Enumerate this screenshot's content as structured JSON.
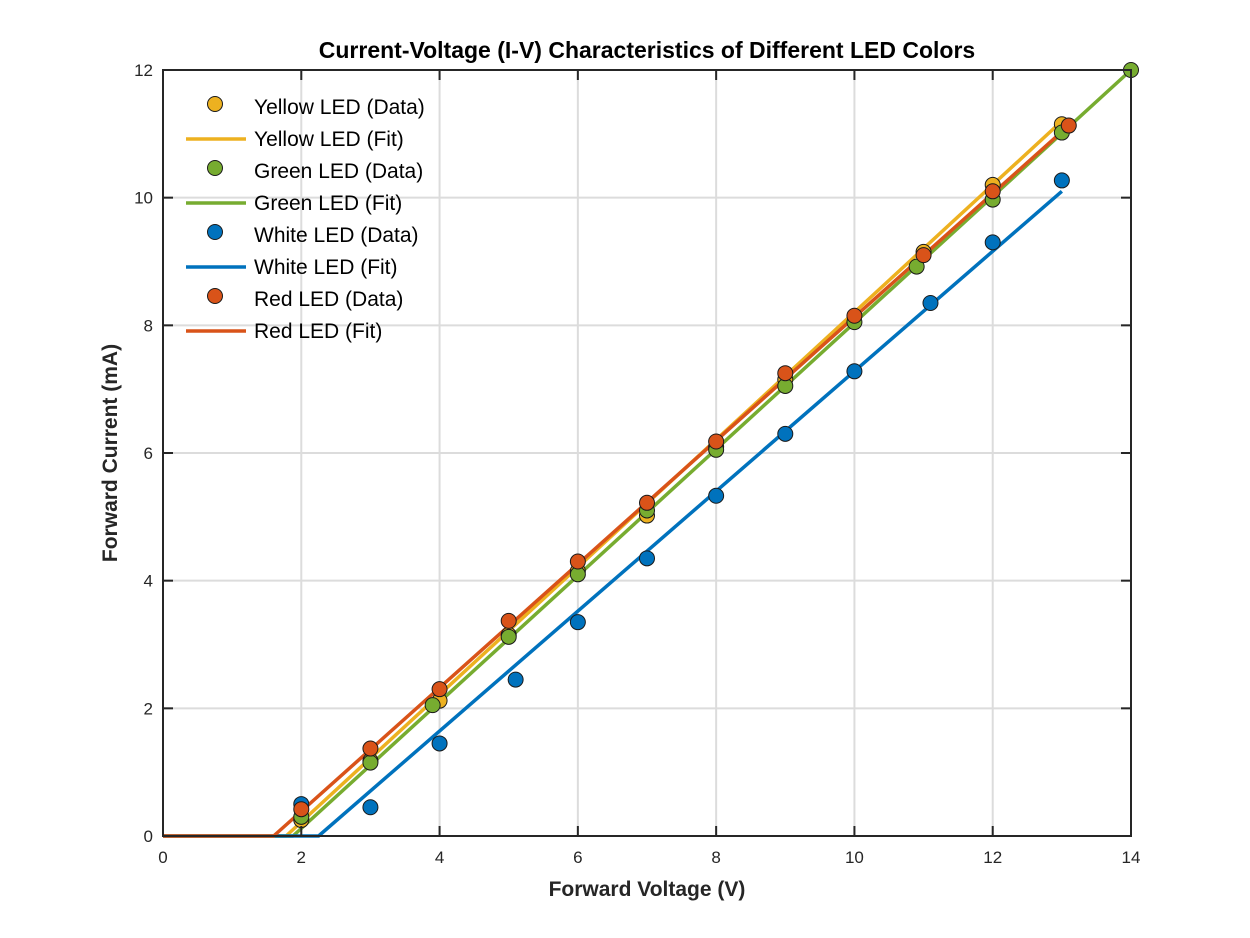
{
  "chart_data": {
    "type": "scatter",
    "title": "Current-Voltage (I-V) Characteristics of Different LED Colors",
    "xlabel": "Forward Voltage (V)",
    "ylabel": "Forward Current (mA)",
    "xlim": [
      0,
      14
    ],
    "ylim": [
      0,
      12
    ],
    "xticks": [
      0,
      2,
      4,
      6,
      8,
      10,
      12,
      14
    ],
    "yticks": [
      0,
      2,
      4,
      6,
      8,
      10,
      12
    ],
    "grid": true,
    "legend_position": "top-left",
    "series": [
      {
        "name": "Yellow LED (Data)",
        "kind": "points",
        "color": "#EDB120",
        "x": [
          2,
          3,
          4,
          5,
          6,
          7,
          8,
          9,
          11,
          12,
          13
        ],
        "y": [
          0.25,
          1.18,
          2.12,
          3.15,
          4.15,
          5.02,
          6.1,
          7.15,
          9.15,
          10.2,
          11.15
        ]
      },
      {
        "name": "Yellow LED (Fit)",
        "kind": "line",
        "color": "#EDB120",
        "x": [
          0,
          1.78,
          13
        ],
        "y": [
          0,
          0,
          11.2
        ]
      },
      {
        "name": "Green LED (Data)",
        "kind": "points",
        "color": "#77AC30",
        "x": [
          2,
          3,
          3.9,
          5,
          6,
          7,
          8,
          9,
          10,
          10.9,
          12,
          13,
          14
        ],
        "y": [
          0.3,
          1.15,
          2.05,
          3.12,
          4.1,
          5.1,
          6.05,
          7.05,
          8.05,
          8.92,
          9.97,
          11.02,
          12
        ]
      },
      {
        "name": "Green LED (Fit)",
        "kind": "line",
        "color": "#77AC30",
        "x": [
          0,
          1.88,
          14
        ],
        "y": [
          0,
          0,
          12
        ]
      },
      {
        "name": "White LED (Data)",
        "kind": "points",
        "color": "#0072BD",
        "x": [
          2,
          3,
          4,
          5.1,
          6,
          7,
          8,
          9,
          10,
          11.1,
          12,
          13
        ],
        "y": [
          0.5,
          0.45,
          1.45,
          2.45,
          3.35,
          4.35,
          5.33,
          6.3,
          7.28,
          8.35,
          9.3,
          10.27
        ]
      },
      {
        "name": "White LED (Fit)",
        "kind": "line",
        "color": "#0072BD",
        "x": [
          0,
          2.25,
          13
        ],
        "y": [
          0,
          0,
          10.1
        ]
      },
      {
        "name": "Red LED (Data)",
        "kind": "points",
        "color": "#D95319",
        "x": [
          2,
          3,
          4,
          5,
          6,
          7,
          8,
          9,
          10,
          11,
          12,
          13.1
        ],
        "y": [
          0.42,
          1.37,
          2.3,
          3.37,
          4.3,
          5.22,
          6.18,
          7.25,
          8.15,
          9.1,
          10.1,
          11.13
        ]
      },
      {
        "name": "Red LED (Fit)",
        "kind": "line",
        "color": "#D95319",
        "x": [
          0,
          1.6,
          13.1
        ],
        "y": [
          0,
          0,
          11.13
        ]
      }
    ]
  }
}
